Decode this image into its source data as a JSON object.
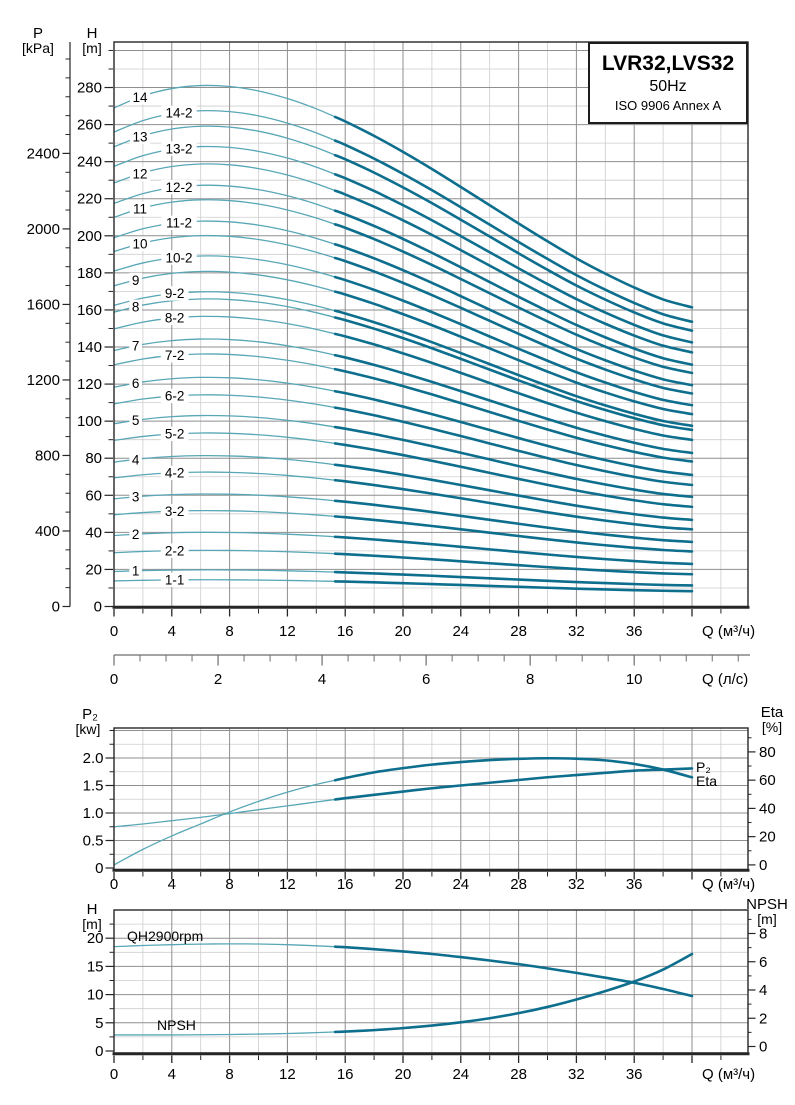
{
  "title_box": {
    "model": "LVR32,LVS32",
    "frequency": "50Hz",
    "standard": "ISO 9906 Annex A"
  },
  "colors": {
    "curve_light": "#58a7b6",
    "curve_dark": "#0d6e8e",
    "grid_major": "#8f8f8f",
    "grid_minor": "#cdcdcd",
    "axis": "#262626",
    "secondary_axis": "#6e6e6e",
    "text": "#000000"
  },
  "chart_data": [
    {
      "type": "line",
      "name": "main-qh-curves",
      "x_axis": {
        "label": "Q (м³/ч)",
        "tick_labels": [
          0,
          4,
          8,
          12,
          16,
          20,
          24,
          28,
          32,
          36
        ],
        "major_step": 4,
        "minor_step": 2,
        "axis_max": 43.8,
        "curve_end_q": 40
      },
      "x_axis_secondary": {
        "label": "Q (л/с)",
        "tick_labels": [
          0,
          2,
          4,
          6,
          8,
          10
        ],
        "minor_step": 0.5,
        "m3h_per_ls": 3.6,
        "axis_max": 12
      },
      "y_axis_head": {
        "label": "H",
        "unit": "[m]",
        "tick_labels": [
          0,
          20,
          40,
          60,
          80,
          100,
          120,
          140,
          160,
          180,
          200,
          220,
          240,
          260,
          280
        ],
        "major_step": 20,
        "minor_step": 10,
        "axis_max": 304
      },
      "y_axis_pressure": {
        "label": "P",
        "unit": "[kPa]",
        "tick_labels": [
          0,
          400,
          800,
          1200,
          1600,
          2000,
          2400
        ],
        "major_step": 400,
        "minor_step": 100,
        "axis_max": 2950
      },
      "bold_from_q": 15.3,
      "head_shape": {
        "q": [
          0,
          2,
          4,
          6,
          8,
          10,
          12,
          14,
          16,
          18,
          20,
          22,
          24,
          26,
          28,
          30,
          32,
          34,
          36,
          38,
          40
        ],
        "f": [
          1,
          1.0241,
          1.0388,
          1.0448,
          1.0429,
          1.034,
          1.0188,
          0.9982,
          0.973,
          0.9439,
          0.9118,
          0.8775,
          0.8414,
          0.8048,
          0.7682,
          0.7325,
          0.6983,
          0.6676,
          0.6398,
          0.6159,
          0.6
        ]
      },
      "curves": [
        {
          "label": "1",
          "h0_m": 18.9,
          "label_q": 1.5
        },
        {
          "label": "1-1",
          "h0_m": 13.8,
          "label_q": 4.2
        },
        {
          "label": "2",
          "h0_m": 38.3,
          "label_q": 1.5
        },
        {
          "label": "2-2",
          "h0_m": 29.0,
          "label_q": 4.2
        },
        {
          "label": "3",
          "h0_m": 58.1,
          "label_q": 1.5
        },
        {
          "label": "3-2",
          "h0_m": 49.5,
          "label_q": 4.2
        },
        {
          "label": "4",
          "h0_m": 77.9,
          "label_q": 1.5
        },
        {
          "label": "4-2",
          "h0_m": 69.4,
          "label_q": 4.2
        },
        {
          "label": "5",
          "h0_m": 98.6,
          "label_q": 1.5
        },
        {
          "label": "5-2",
          "h0_m": 89.6,
          "label_q": 4.2
        },
        {
          "label": "6",
          "h0_m": 118.3,
          "label_q": 1.5
        },
        {
          "label": "6-2",
          "h0_m": 109.3,
          "label_q": 4.2
        },
        {
          "label": "7",
          "h0_m": 138.1,
          "label_q": 1.5
        },
        {
          "label": "7-2",
          "h0_m": 130.4,
          "label_q": 4.2
        },
        {
          "label": "8",
          "h0_m": 158.8,
          "label_q": 1.5
        },
        {
          "label": "8-2",
          "h0_m": 149.8,
          "label_q": 4.2
        },
        {
          "label": "9",
          "h0_m": 173.0,
          "label_q": 1.5
        },
        {
          "label": "9-2",
          "h0_m": 162.5,
          "label_q": 4.2
        },
        {
          "label": "10",
          "h0_m": 191.5,
          "label_q": 1.8
        },
        {
          "label": "10-2",
          "h0_m": 181.0,
          "label_q": 4.5
        },
        {
          "label": "11",
          "h0_m": 210.0,
          "label_q": 1.8
        },
        {
          "label": "11-2",
          "h0_m": 199.0,
          "label_q": 4.5
        },
        {
          "label": "12",
          "h0_m": 228.5,
          "label_q": 1.8
        },
        {
          "label": "12-2",
          "h0_m": 217.5,
          "label_q": 4.5
        },
        {
          "label": "13",
          "h0_m": 248.0,
          "label_q": 1.8
        },
        {
          "label": "13-2",
          "h0_m": 237.5,
          "label_q": 4.5
        },
        {
          "label": "14",
          "h0_m": 269.0,
          "label_q": 1.8
        },
        {
          "label": "14-2",
          "h0_m": 256.0,
          "label_q": 4.5
        }
      ]
    },
    {
      "type": "line",
      "name": "power-efficiency",
      "x_axis": {
        "label": "Q (м³/ч)",
        "tick_labels": [
          0,
          4,
          8,
          12,
          16,
          20,
          24,
          28,
          32,
          36
        ],
        "major_step": 4,
        "minor_step": 2,
        "axis_max": 43.8
      },
      "y_axis_power": {
        "label": "P₂",
        "unit": "[kw]",
        "tick_labels": [
          "0",
          "0.5",
          "1.0",
          "1.5",
          "2.0"
        ],
        "tick_values": [
          0,
          0.5,
          1,
          1.5,
          2
        ],
        "major_step": 0.5,
        "minor_step": 0.25,
        "axis_max": 2.5
      },
      "y_axis_eta": {
        "label": "Eta",
        "unit": "[%]",
        "tick_labels": [
          0,
          20,
          40,
          60,
          80
        ],
        "major_step": 20,
        "minor_step": 10,
        "axis_max": 90
      },
      "bold_from_q": 15.3,
      "series": [
        {
          "name": "P₂",
          "axis": "power",
          "q": [
            0,
            2,
            4,
            6,
            8,
            10,
            12,
            14,
            16,
            18,
            20,
            22,
            24,
            26,
            28,
            30,
            32,
            34,
            36,
            38,
            40
          ],
          "kw": [
            0.75,
            0.8,
            0.86,
            0.92,
            0.99,
            1.06,
            1.13,
            1.2,
            1.27,
            1.33,
            1.39,
            1.45,
            1.5,
            1.55,
            1.6,
            1.65,
            1.69,
            1.73,
            1.77,
            1.79,
            1.81
          ]
        },
        {
          "name": "Eta",
          "axis": "eta",
          "q": [
            0,
            2,
            4,
            6,
            8,
            10,
            12,
            14,
            16,
            18,
            20,
            22,
            24,
            26,
            28,
            30,
            32,
            34,
            36,
            38,
            40
          ],
          "pct": [
            0,
            11,
            20.5,
            29,
            37.5,
            45,
            51.5,
            57,
            61.5,
            65.5,
            68.5,
            71,
            72.8,
            74.2,
            75.1,
            75.5,
            75.2,
            74,
            71.5,
            67.5,
            62
          ]
        }
      ],
      "curve_labels": [
        {
          "text": "P₂"
        },
        {
          "text": "Eta"
        }
      ]
    },
    {
      "type": "line",
      "name": "qh-npsh",
      "x_axis": {
        "label": "Q (м³/ч)",
        "tick_labels": [
          0,
          4,
          8,
          12,
          16,
          20,
          24,
          28,
          32,
          36
        ],
        "major_step": 4,
        "minor_step": 2,
        "axis_max": 43.8
      },
      "y_axis_head": {
        "label": "H",
        "unit": "[m]",
        "tick_labels": [
          0,
          5,
          10,
          15,
          20
        ],
        "major_step": 5,
        "minor_step": 2.5,
        "axis_max": 25
      },
      "y_axis_npsh": {
        "label": "NPSH",
        "unit": "[m]",
        "tick_labels": [
          0,
          2,
          4,
          6,
          8
        ],
        "major_step": 2,
        "minor_step": 1,
        "axis_max": 9
      },
      "bold_from_q": 15.3,
      "series": [
        {
          "name": "QH2900rpm",
          "axis": "head",
          "q": [
            0,
            2,
            4,
            6,
            8,
            10,
            12,
            14,
            16,
            18,
            20,
            22,
            24,
            26,
            28,
            30,
            32,
            34,
            36,
            38,
            40
          ],
          "h_m": [
            18.5,
            18.7,
            18.85,
            18.95,
            19.0,
            18.97,
            18.85,
            18.65,
            18.4,
            18.05,
            17.65,
            17.2,
            16.65,
            16.05,
            15.4,
            14.65,
            13.85,
            13.0,
            12.1,
            11.0,
            9.75
          ]
        },
        {
          "name": "NPSH",
          "axis": "npsh",
          "q": [
            0,
            2,
            4,
            6,
            8,
            10,
            12,
            14,
            16,
            18,
            20,
            22,
            24,
            26,
            28,
            30,
            32,
            34,
            36,
            38,
            40
          ],
          "npsh_m": [
            0.82,
            0.82,
            0.82,
            0.83,
            0.85,
            0.88,
            0.92,
            0.98,
            1.06,
            1.16,
            1.3,
            1.48,
            1.71,
            2.0,
            2.36,
            2.8,
            3.33,
            3.92,
            4.6,
            5.45,
            6.55
          ]
        }
      ],
      "curve_labels": [
        {
          "text": "QH2900rpm"
        },
        {
          "text": "NPSH"
        }
      ]
    }
  ]
}
